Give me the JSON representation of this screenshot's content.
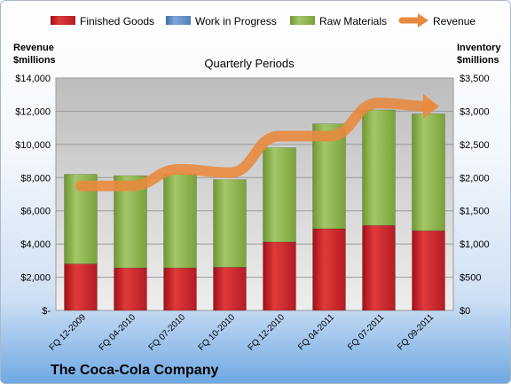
{
  "chart_data": {
    "type": "bar",
    "subtype": "stacked bar with line overlay",
    "title": "Quarterly Periods",
    "footer": "The Coca-Cola Company",
    "categories": [
      "FQ 12-2009",
      "FQ 04-2010",
      "FQ 07-2010",
      "FQ 10-2010",
      "FQ 12-2010",
      "FQ 04-2011",
      "FQ 07-2011",
      "FQ 09-2011"
    ],
    "left_axis": {
      "label_line1": "Revenue",
      "label_line2": "$millions",
      "ylim": [
        0,
        14000
      ],
      "ticks": [
        "$-",
        "$2,000",
        "$4,000",
        "$6,000",
        "$8,000",
        "$10,000",
        "$12,000",
        "$14,000"
      ]
    },
    "right_axis": {
      "label_line1": "Inventory",
      "label_line2": "$millions",
      "ylim": [
        0,
        3500
      ],
      "ticks": [
        "$0",
        "$500",
        "$1,000",
        "$1,500",
        "$2,000",
        "$2,500",
        "$3,000",
        "$3,500"
      ]
    },
    "series": [
      {
        "name": "Finished Goods",
        "axis": "right",
        "color": "#c0202a",
        "values": [
          700,
          640,
          640,
          650,
          1030,
          1230,
          1280,
          1200
        ]
      },
      {
        "name": "Work in Progress",
        "axis": "right",
        "color": "#4f81bd",
        "values": [
          0,
          0,
          0,
          0,
          0,
          0,
          0,
          0
        ]
      },
      {
        "name": "Raw Materials",
        "axis": "right",
        "color": "#8db04a",
        "values": [
          1350,
          1390,
          1420,
          1320,
          1420,
          1580,
          1740,
          1760
        ]
      },
      {
        "name": "Revenue",
        "axis": "left",
        "type": "line",
        "color": "#e8893e",
        "values": [
          7500,
          7500,
          8500,
          8300,
          10500,
          10500,
          12500,
          12300
        ]
      }
    ],
    "grid": true,
    "legend": "top"
  }
}
